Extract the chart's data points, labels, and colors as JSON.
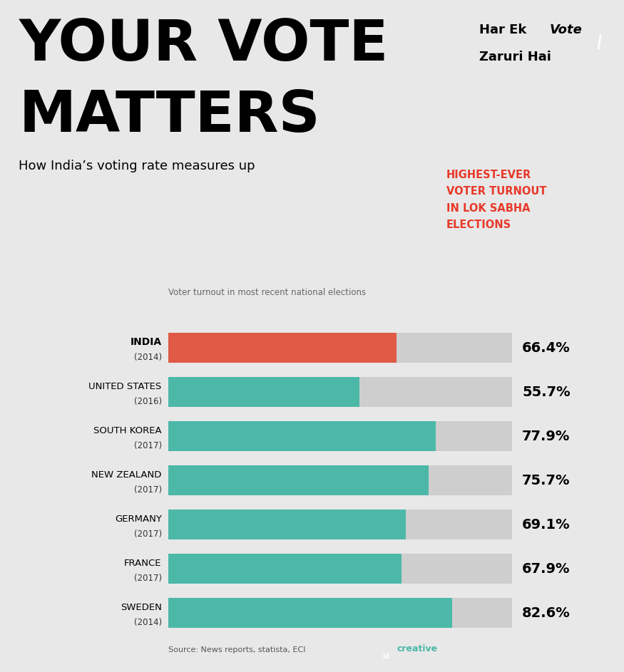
{
  "title_line1": "YOUR VOTE",
  "title_line2": "MATTERS",
  "subtitle": "How India’s voting rate measures up",
  "chart_label": "Voter turnout in most recent national elections",
  "highlight_text_line1": "HIGHEST-EVER",
  "highlight_text_line2": "VOTER TURNOUT",
  "highlight_text_line3": "IN LOK SABHA",
  "highlight_text_line4": "ELECTIONS",
  "highlight_color": "#E8392A",
  "source_text": "Source: News reports, statista, ECI",
  "countries": [
    "INDIA",
    "UNITED STATES",
    "SOUTH KOREA",
    "NEW ZEALAND",
    "GERMANY",
    "FRANCE",
    "SWEDEN"
  ],
  "years": [
    "(2014)",
    "(2016)",
    "(2017)",
    "(2017)",
    "(2017)",
    "(2017)",
    "(2014)"
  ],
  "values": [
    66.4,
    55.7,
    77.9,
    75.7,
    69.1,
    67.9,
    82.6
  ],
  "bar_colors": [
    "#E05A45",
    "#4CB8A8",
    "#4CB8A8",
    "#4CB8A8",
    "#4CB8A8",
    "#4CB8A8",
    "#4CB8A8"
  ],
  "teal_color": "#4CB8A8",
  "red_color": "#E05A45",
  "background_color": "#E8E8E8",
  "bar_bg_color": "#CECECE",
  "max_val": 100,
  "logo_bg": "#F5C400",
  "logo_text_color": "#111111",
  "logo_vote_color": "#111111",
  "logo_check_color": "#ffffff"
}
